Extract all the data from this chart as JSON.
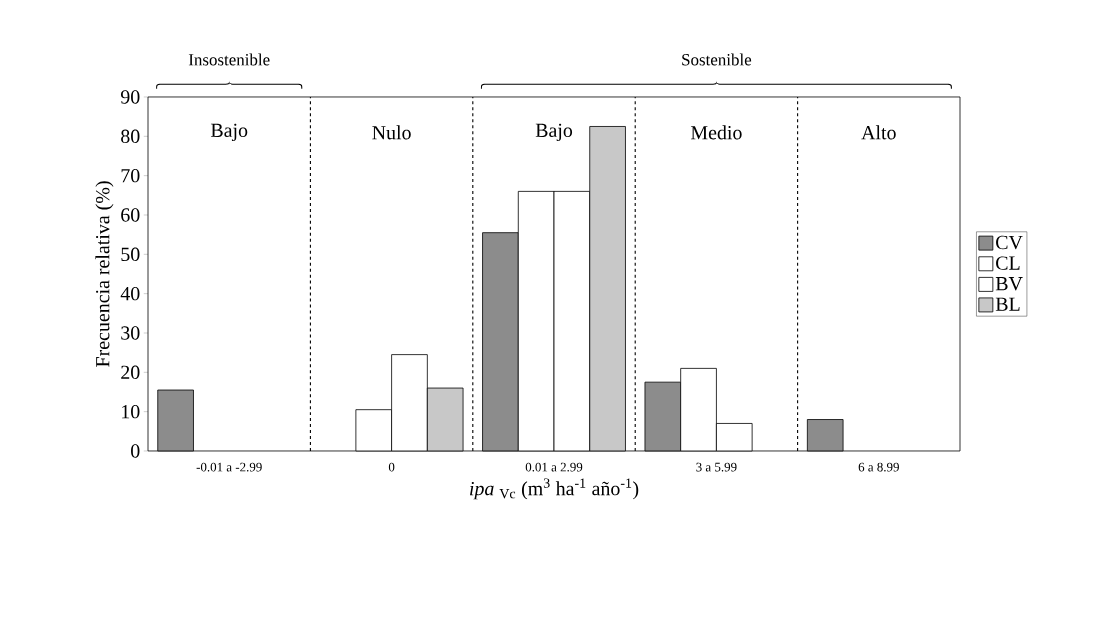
{
  "chart_data": {
    "type": "bar",
    "xlabel": "*ipa* $_{Vc}$ (m$^{3}$ ha$^{-1}$ año$^{-1}$)",
    "ylabel": "Frecuencia relativa (%)",
    "categories": [
      "-0.01 a -2.99",
      "0",
      "0.01 a 2.99",
      "3 a 5.99",
      "6 a 8.99"
    ],
    "series": [
      {
        "name": "CV",
        "color": "#8c8c8c",
        "values": [
          15.5,
          null,
          55.5,
          17.5,
          8
        ]
      },
      {
        "name": "CL",
        "color": "#ffffff",
        "values": [
          null,
          10.5,
          66,
          21,
          null
        ]
      },
      {
        "name": "BV",
        "color": "#ffffff",
        "values": [
          null,
          24.5,
          66,
          7,
          null
        ]
      },
      {
        "name": "BL",
        "color": "#c8c8c8",
        "values": [
          null,
          16,
          82.5,
          null,
          null
        ]
      }
    ],
    "ylim": [
      0,
      90
    ],
    "yticks": [
      0,
      10,
      20,
      30,
      40,
      50,
      60,
      70,
      80,
      90
    ],
    "grid": "x",
    "legend": "right",
    "annotations": [
      "Bajo",
      "Nulo",
      "Bajo",
      "Medio",
      "Alto",
      "Insostenible",
      "Sostenible"
    ]
  }
}
